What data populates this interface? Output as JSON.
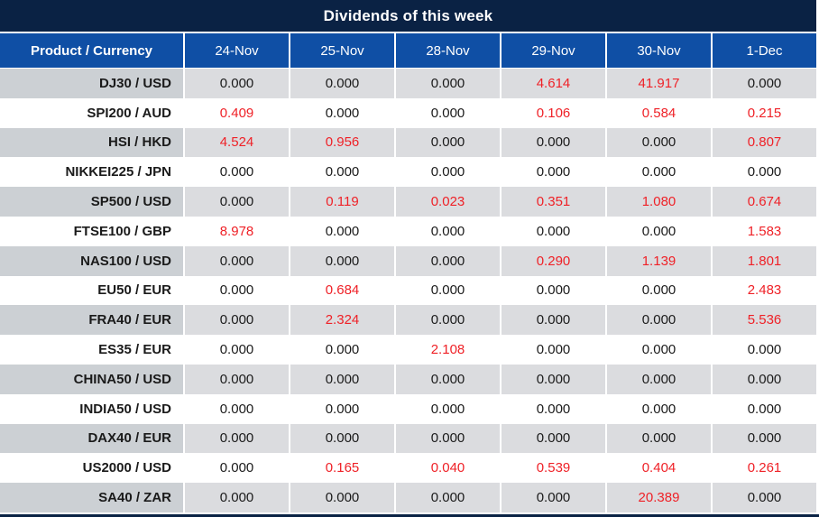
{
  "chart_data": {
    "type": "table",
    "title": "Dividends of this week",
    "corner_header": "Product / Currency",
    "date_columns": [
      "24-Nov",
      "25-Nov",
      "28-Nov",
      "29-Nov",
      "30-Nov",
      "1-Dec"
    ],
    "rows": [
      {
        "product": "DJ30 / USD",
        "values": [
          "0.000",
          "0.000",
          "0.000",
          "4.614",
          "41.917",
          "0.000"
        ],
        "red": [
          0,
          0,
          0,
          1,
          1,
          0
        ]
      },
      {
        "product": "SPI200 / AUD",
        "values": [
          "0.409",
          "0.000",
          "0.000",
          "0.106",
          "0.584",
          "0.215"
        ],
        "red": [
          1,
          0,
          0,
          1,
          1,
          1
        ]
      },
      {
        "product": "HSI / HKD",
        "values": [
          "4.524",
          "0.956",
          "0.000",
          "0.000",
          "0.000",
          "0.807"
        ],
        "red": [
          1,
          1,
          0,
          0,
          0,
          1
        ]
      },
      {
        "product": "NIKKEI225 / JPN",
        "values": [
          "0.000",
          "0.000",
          "0.000",
          "0.000",
          "0.000",
          "0.000"
        ],
        "red": [
          0,
          0,
          0,
          0,
          0,
          0
        ]
      },
      {
        "product": "SP500 / USD",
        "values": [
          "0.000",
          "0.119",
          "0.023",
          "0.351",
          "1.080",
          "0.674"
        ],
        "red": [
          0,
          1,
          1,
          1,
          1,
          1
        ]
      },
      {
        "product": "FTSE100 / GBP",
        "values": [
          "8.978",
          "0.000",
          "0.000",
          "0.000",
          "0.000",
          "1.583"
        ],
        "red": [
          1,
          0,
          0,
          0,
          0,
          1
        ]
      },
      {
        "product": "NAS100 / USD",
        "values": [
          "0.000",
          "0.000",
          "0.000",
          "0.290",
          "1.139",
          "1.801"
        ],
        "red": [
          0,
          0,
          0,
          1,
          1,
          1
        ]
      },
      {
        "product": "EU50 / EUR",
        "values": [
          "0.000",
          "0.684",
          "0.000",
          "0.000",
          "0.000",
          "2.483"
        ],
        "red": [
          0,
          1,
          0,
          0,
          0,
          1
        ]
      },
      {
        "product": "FRA40 / EUR",
        "values": [
          "0.000",
          "2.324",
          "0.000",
          "0.000",
          "0.000",
          "5.536"
        ],
        "red": [
          0,
          1,
          0,
          0,
          0,
          1
        ]
      },
      {
        "product": "ES35 / EUR",
        "values": [
          "0.000",
          "0.000",
          "2.108",
          "0.000",
          "0.000",
          "0.000"
        ],
        "red": [
          0,
          0,
          1,
          0,
          0,
          0
        ]
      },
      {
        "product": "CHINA50 / USD",
        "values": [
          "0.000",
          "0.000",
          "0.000",
          "0.000",
          "0.000",
          "0.000"
        ],
        "red": [
          0,
          0,
          0,
          0,
          0,
          0
        ]
      },
      {
        "product": "INDIA50 / USD",
        "values": [
          "0.000",
          "0.000",
          "0.000",
          "0.000",
          "0.000",
          "0.000"
        ],
        "red": [
          0,
          0,
          0,
          0,
          0,
          0
        ]
      },
      {
        "product": "DAX40 / EUR",
        "values": [
          "0.000",
          "0.000",
          "0.000",
          "0.000",
          "0.000",
          "0.000"
        ],
        "red": [
          0,
          0,
          0,
          0,
          0,
          0
        ]
      },
      {
        "product": "US2000 / USD",
        "values": [
          "0.000",
          "0.165",
          "0.040",
          "0.539",
          "0.404",
          "0.261"
        ],
        "red": [
          0,
          1,
          1,
          1,
          1,
          1
        ]
      },
      {
        "product": "SA40 / ZAR",
        "values": [
          "0.000",
          "0.000",
          "0.000",
          "0.000",
          "20.389",
          "0.000"
        ],
        "red": [
          0,
          0,
          0,
          0,
          1,
          0
        ]
      }
    ]
  },
  "colors": {
    "title_bar_bg": "#0a2244",
    "header_bg": "#0f4fa5",
    "row_alt_product_bg": "#ccd0d4",
    "row_alt_value_bg": "#dbdcdf",
    "row_bg": "#ffffff",
    "value_negative_red": "#ef2127",
    "value_text": "#1a1a1a",
    "header_text": "#ffffff"
  }
}
